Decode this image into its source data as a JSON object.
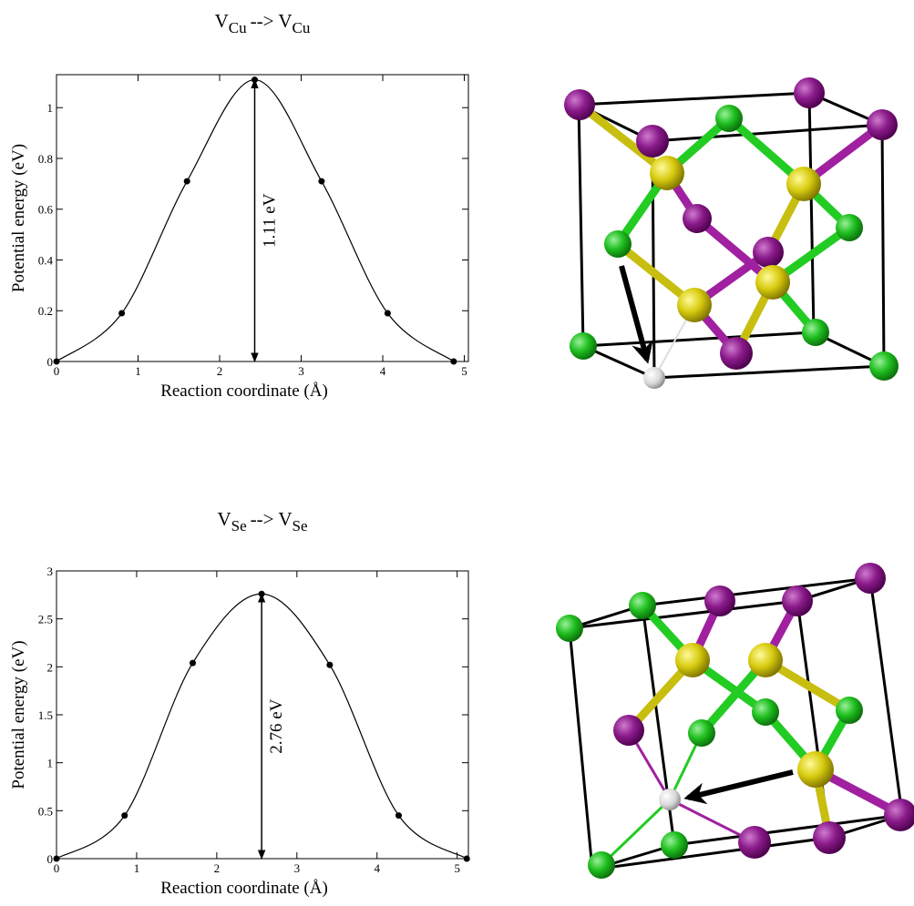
{
  "chart_data": [
    {
      "type": "line",
      "title": [
        "V",
        "Cu",
        "--> V",
        "Cu"
      ],
      "x_label": "Reaction coordinate (Å)",
      "y_label": "Potential energy (eV)",
      "x": [
        0,
        0.8,
        1.6,
        2.43,
        3.25,
        4.06,
        4.87
      ],
      "series": [
        {
          "color": "#000000",
          "values": [
            0,
            0.19,
            0.71,
            1.11,
            0.71,
            0.19,
            0
          ]
        }
      ],
      "annotation": "1.11 eV",
      "xlim": [
        0,
        5.05
      ],
      "ylim": [
        0,
        1.13
      ],
      "xticks": [
        0,
        1,
        2,
        3,
        4,
        5
      ],
      "yticks": [
        0,
        0.2,
        0.4,
        0.6,
        0.8,
        1
      ]
    },
    {
      "type": "line",
      "title": [
        "V",
        "Se",
        "--> V",
        "Se"
      ],
      "x_label": "Reaction coordinate (Å)",
      "y_label": "Potential energy (eV)",
      "x": [
        0,
        0.85,
        1.7,
        2.56,
        3.41,
        4.27,
        5.12
      ],
      "series": [
        {
          "color": "#000000",
          "values": [
            0,
            0.45,
            2.04,
            2.76,
            2.02,
            0.45,
            0
          ]
        }
      ],
      "annotation": "2.76 eV",
      "xlim": [
        0,
        5.14
      ],
      "ylim": [
        0,
        3
      ],
      "xticks": [
        0,
        1,
        2,
        3,
        4,
        5
      ],
      "yticks": [
        0,
        0.5,
        1,
        1.5,
        2,
        2.5,
        3
      ]
    }
  ]
}
